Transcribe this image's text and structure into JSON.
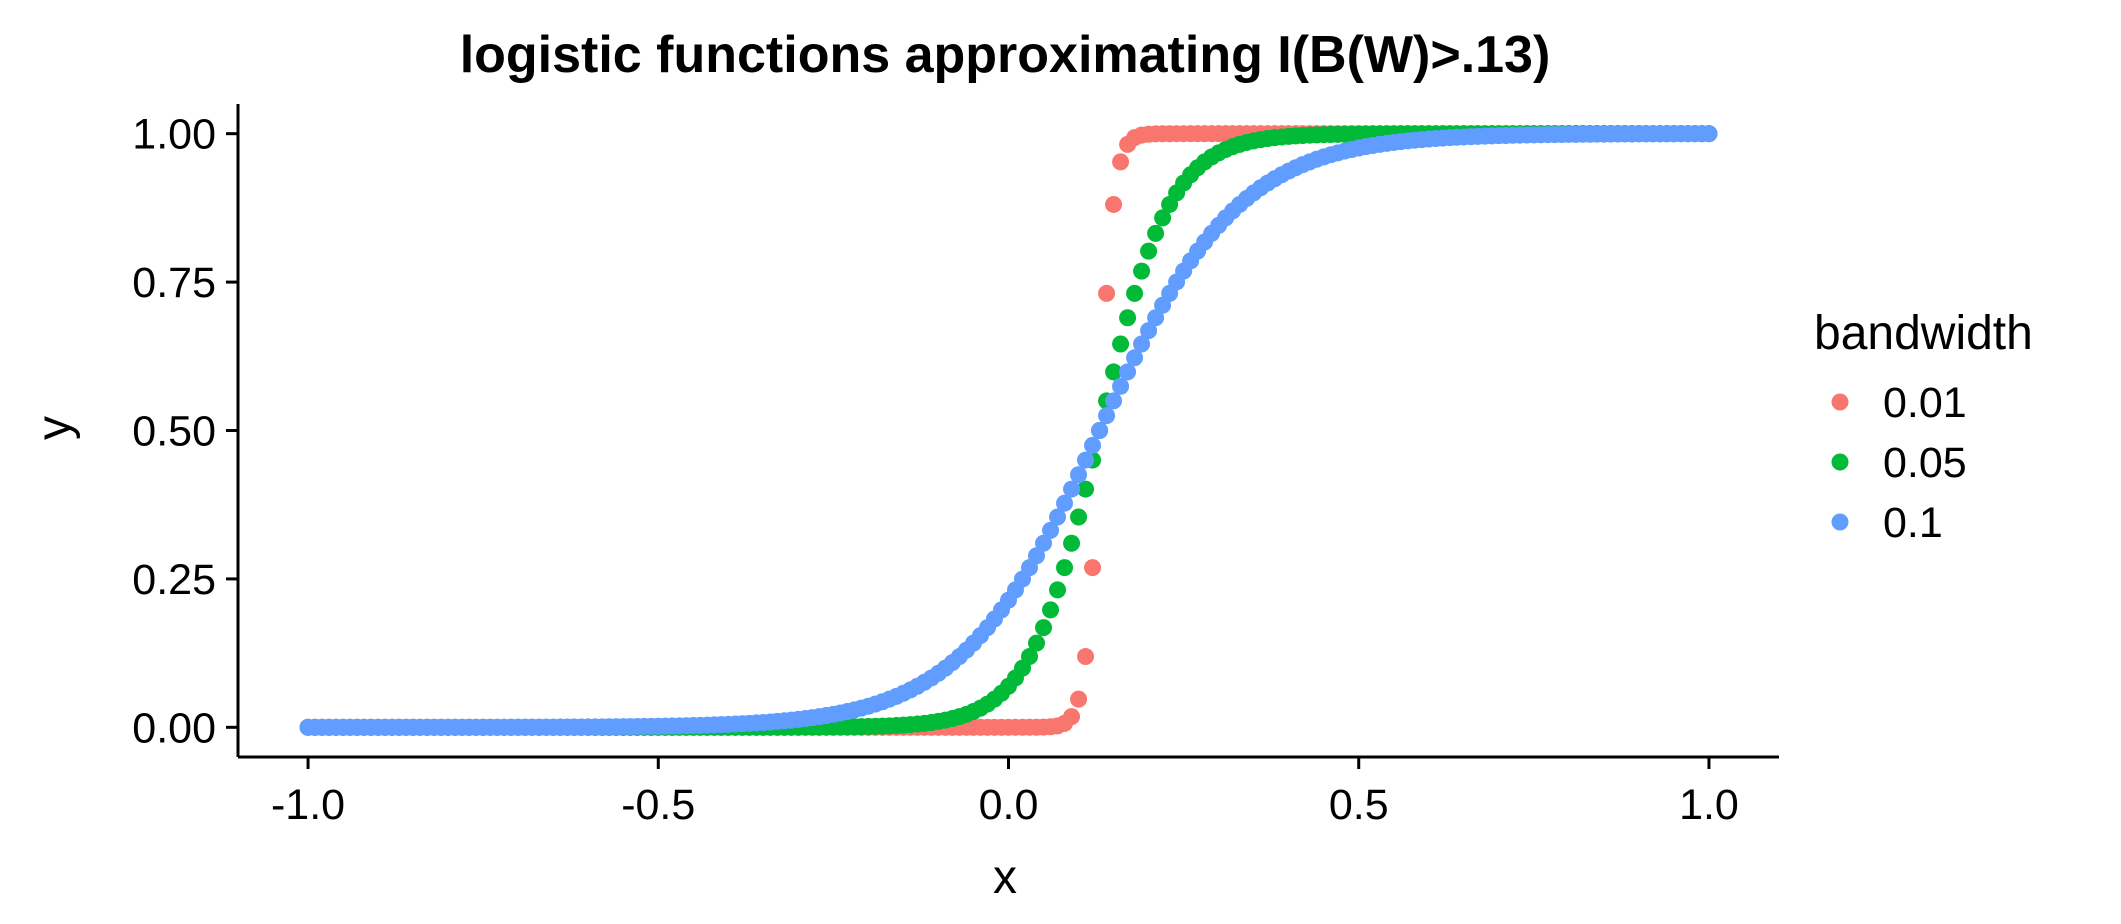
{
  "chart_data": {
    "type": "scatter",
    "title": "logistic functions approximating I(B(W)>.13)",
    "xlabel": "x",
    "ylabel": "y",
    "xlim": [
      -1.1,
      1.1
    ],
    "ylim": [
      -0.05,
      1.05
    ],
    "x_ticks": [
      -1.0,
      -0.5,
      0.0,
      0.5,
      1.0
    ],
    "x_tick_labels": [
      "-1.0",
      "-0.5",
      "0.0",
      "0.5",
      "1.0"
    ],
    "y_ticks": [
      0.0,
      0.25,
      0.5,
      0.75,
      1.0
    ],
    "y_tick_labels": [
      "0.00",
      "0.25",
      "0.50",
      "0.75",
      "1.00"
    ],
    "grid": false,
    "x_range": [
      -1.0,
      1.0
    ],
    "x_step": 0.01,
    "center": 0.13,
    "legend": {
      "title": "bandwidth",
      "position": "right"
    },
    "series": [
      {
        "name": "0.01",
        "bandwidth": 0.01,
        "color": "#F8766D"
      },
      {
        "name": "0.05",
        "bandwidth": 0.05,
        "color": "#00BA38"
      },
      {
        "name": "0.1",
        "bandwidth": 0.1,
        "color": "#619CFF"
      }
    ]
  }
}
